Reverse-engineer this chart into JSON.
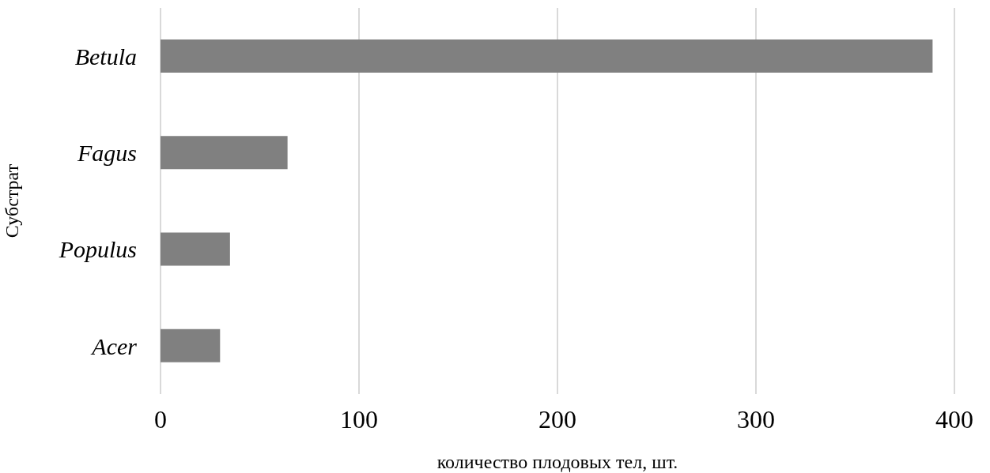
{
  "chart_data": {
    "type": "bar",
    "orientation": "horizontal",
    "xlabel": "количество плодовых тел, шт.",
    "ylabel": "Субстрат",
    "categories": [
      "Betula",
      "Fagus",
      "Populus",
      "Acer"
    ],
    "values": [
      389,
      64,
      35,
      30
    ],
    "color": "#808080",
    "xlim": [
      0,
      400
    ],
    "xticks": [
      0,
      100,
      200,
      300,
      400
    ],
    "grid": "x"
  }
}
